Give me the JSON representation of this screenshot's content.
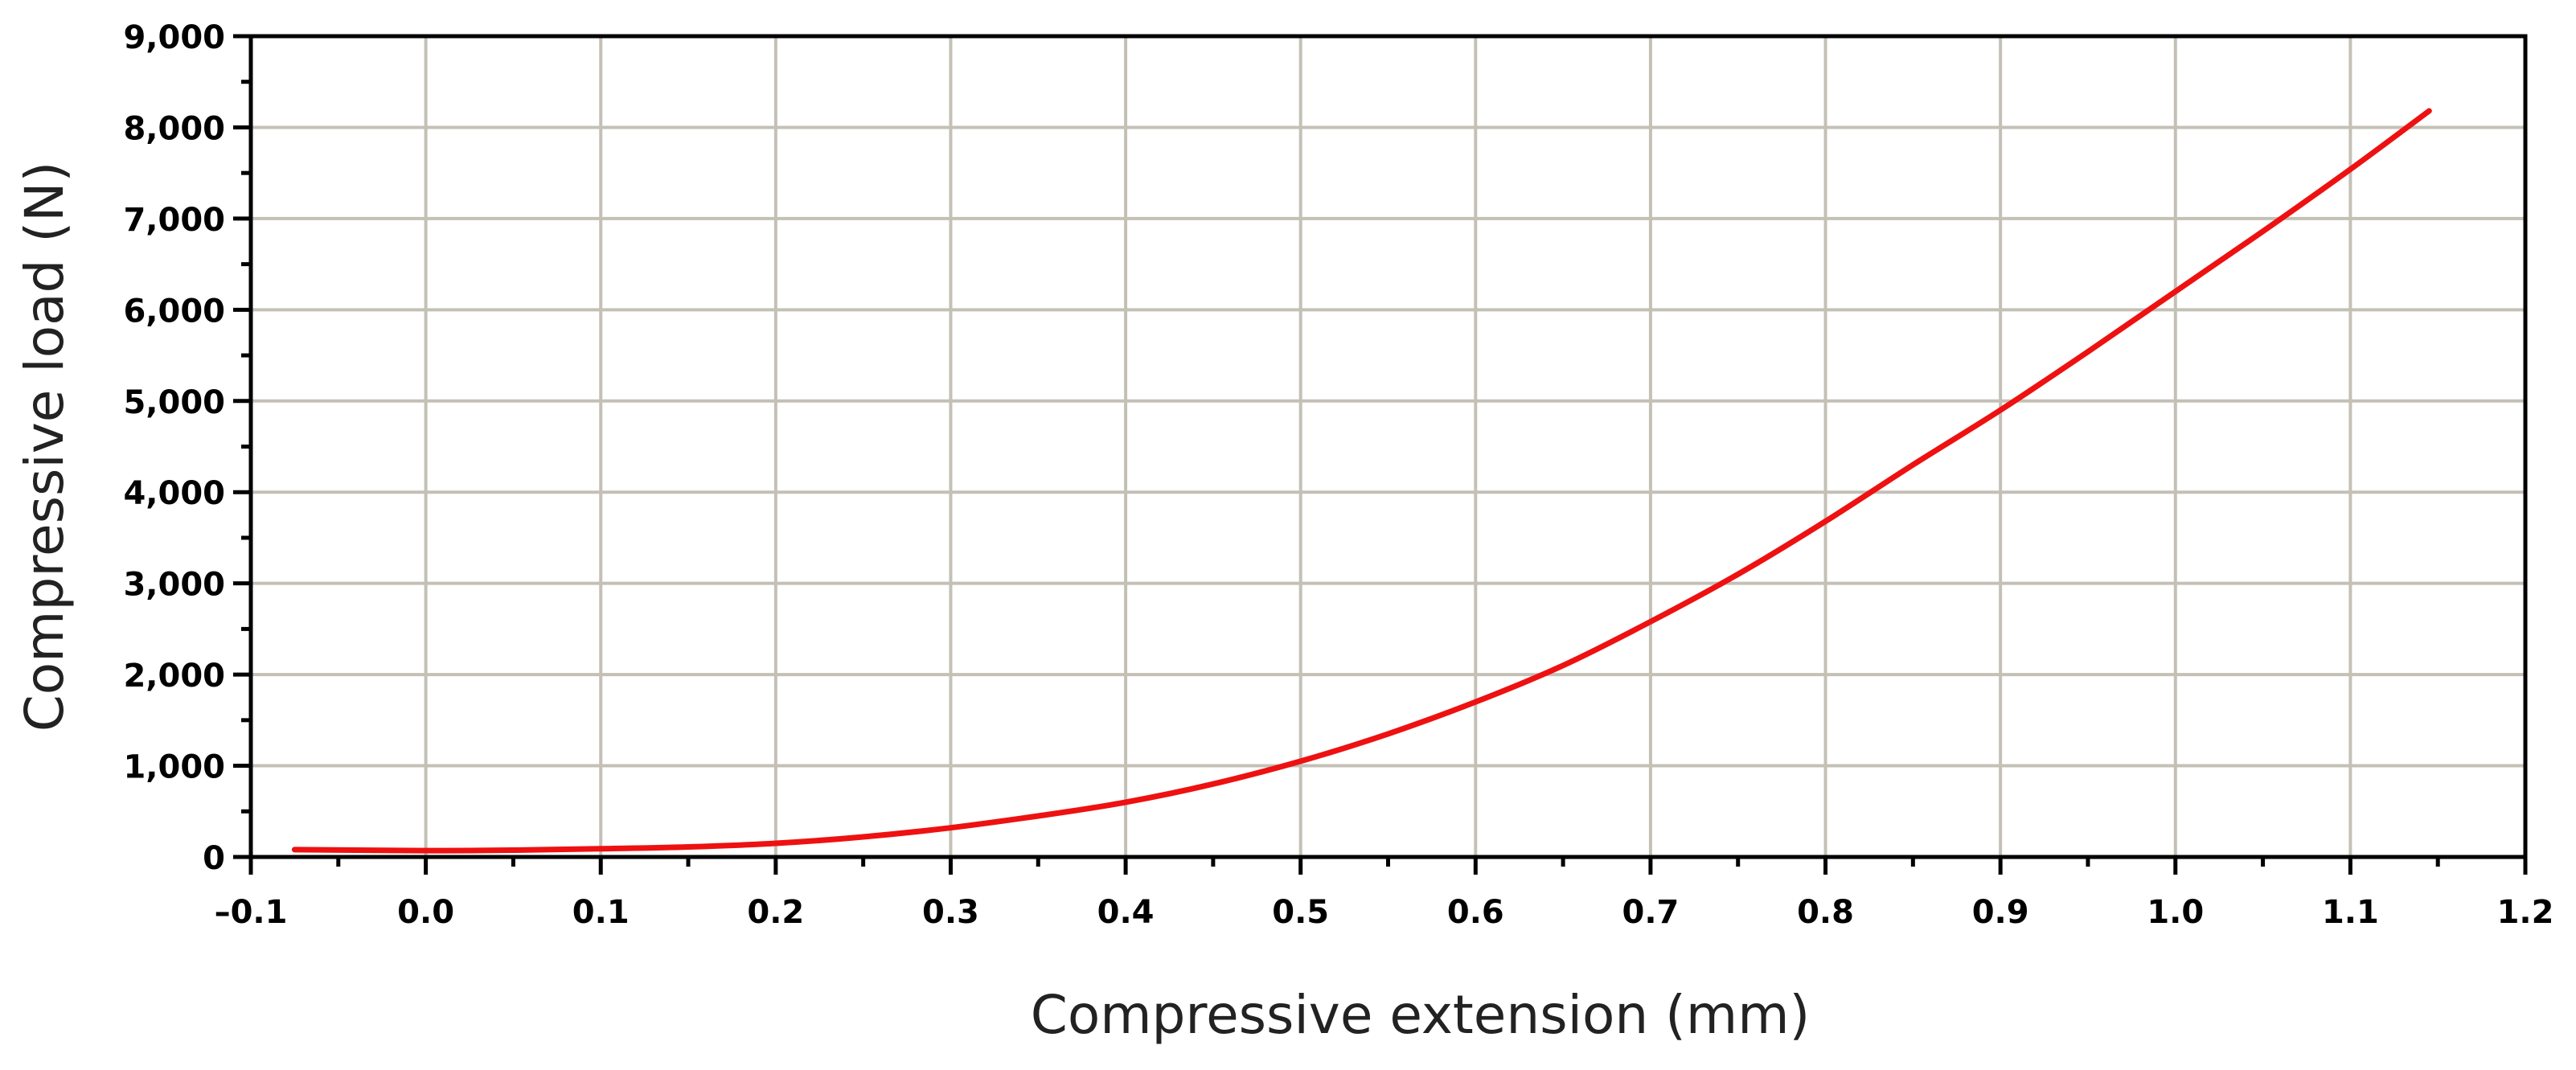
{
  "chart_data": {
    "type": "line",
    "title": "",
    "xlabel": "Compressive extension (mm)",
    "ylabel": "Compressive load (N)",
    "xlim": [
      -0.1,
      1.2
    ],
    "ylim": [
      0,
      9000
    ],
    "x_ticks": [
      -0.1,
      0.0,
      0.1,
      0.2,
      0.3,
      0.4,
      0.5,
      0.6,
      0.7,
      0.8,
      0.9,
      1.0,
      1.1,
      1.2
    ],
    "x_tick_labels": [
      "–0.1",
      "0.0",
      "0.1",
      "0.2",
      "0.3",
      "0.4",
      "0.5",
      "0.6",
      "0.7",
      "0.8",
      "0.9",
      "1.0",
      "1.1",
      "1.2"
    ],
    "y_ticks": [
      0,
      1000,
      2000,
      3000,
      4000,
      5000,
      6000,
      7000,
      8000,
      9000
    ],
    "y_tick_labels": [
      "0",
      "1,000",
      "2,000",
      "3,000",
      "4,000",
      "5,000",
      "6,000",
      "7,000",
      "8,000",
      "9,000"
    ],
    "grid": true,
    "legend": "none",
    "series_color": "#ee1111",
    "series": [
      {
        "x": [
          -0.075,
          0.0,
          0.05,
          0.1,
          0.15,
          0.2,
          0.25,
          0.3,
          0.35,
          0.4,
          0.45,
          0.5,
          0.55,
          0.6,
          0.65,
          0.7,
          0.75,
          0.8,
          0.85,
          0.9,
          0.95,
          1.0,
          1.05,
          1.1,
          1.145
        ],
        "y": [
          80,
          70,
          75,
          90,
          110,
          150,
          220,
          320,
          450,
          600,
          800,
          1050,
          1350,
          1700,
          2100,
          2580,
          3100,
          3680,
          4300,
          4900,
          5540,
          6200,
          6860,
          7540,
          8180
        ]
      }
    ]
  }
}
